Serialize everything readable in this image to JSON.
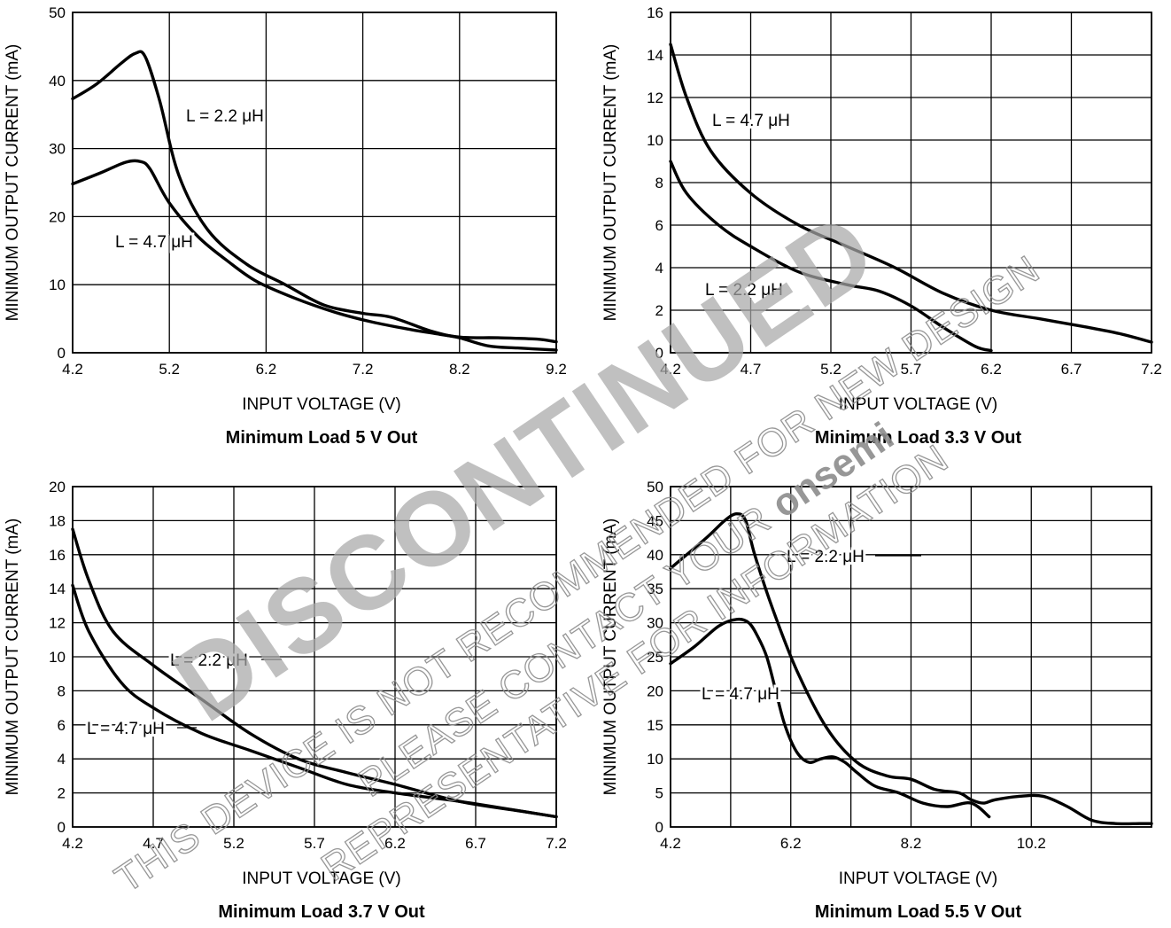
{
  "watermark": {
    "big": "DISCONTINUED",
    "line1": "THIS DEVICE IS NOT RECOMMENDED FOR NEW DESIGN",
    "line2_a": "PLEASE CONTACT YOUR ",
    "line2_brand": "onsemi",
    "line3": "REPRESENTATIVE FOR INFORMATION",
    "color": "#a8a8a8"
  },
  "chart_data": [
    {
      "type": "line",
      "title": "Minimum Load 5 V Out",
      "xlabel": "INPUT VOLTAGE (V)",
      "ylabel": "MINIMUM OUTPUT CURRENT (mA)",
      "xlim": [
        4.2,
        9.2
      ],
      "ylim": [
        0,
        50
      ],
      "xticks": [
        "4.2",
        "5.2",
        "6.2",
        "7.2",
        "8.2",
        "9.2"
      ],
      "xtick_values": [
        4.2,
        5.2,
        6.2,
        7.2,
        8.2,
        9.2
      ],
      "yticks": [
        "0",
        "10",
        "20",
        "30",
        "40",
        "50"
      ],
      "ytick_values": [
        0,
        10,
        20,
        30,
        40,
        50
      ],
      "grid": true,
      "series": [
        {
          "name": "L = 2.2 μH",
          "x": [
            4.2,
            4.45,
            4.7,
            4.85,
            4.95,
            5.1,
            5.3,
            5.6,
            6.0,
            6.4,
            6.8,
            7.2,
            7.5,
            7.9,
            8.2,
            8.6,
            9.0,
            9.2
          ],
          "y": [
            37.3,
            39.5,
            42.5,
            44.0,
            43.5,
            37.0,
            26.0,
            18.0,
            13.0,
            10.0,
            7.0,
            5.8,
            5.2,
            3.2,
            2.3,
            2.2,
            2.0,
            1.6
          ]
        },
        {
          "name": "L = 4.7 μH",
          "x": [
            4.2,
            4.5,
            4.75,
            4.9,
            5.0,
            5.2,
            5.5,
            5.8,
            6.1,
            6.5,
            6.9,
            7.3,
            7.7,
            8.0,
            8.2,
            8.5,
            8.8,
            9.2
          ],
          "y": [
            24.8,
            26.5,
            28.0,
            28.1,
            27.0,
            22.0,
            17.0,
            13.5,
            10.5,
            8.0,
            6.0,
            4.5,
            3.4,
            2.7,
            2.2,
            1.0,
            0.7,
            0.4
          ]
        }
      ],
      "annotations": [
        {
          "text": "L = 2.2 μH",
          "series": 0
        },
        {
          "text": "L = 4.7 μH",
          "series": 1
        }
      ]
    },
    {
      "type": "line",
      "title": "Minimum Load 3.3 V Out",
      "xlabel": "INPUT VOLTAGE (V)",
      "ylabel": "MINIMUM OUTPUT CURRENT (mA)",
      "xlim": [
        4.2,
        7.2
      ],
      "ylim": [
        0,
        16
      ],
      "xticks": [
        "4.2",
        "4.7",
        "5.2",
        "5.7",
        "6.2",
        "6.7",
        "7.2"
      ],
      "xtick_values": [
        4.2,
        4.7,
        5.2,
        5.7,
        6.2,
        6.7,
        7.2
      ],
      "yticks": [
        "0",
        "2",
        "4",
        "6",
        "8",
        "10",
        "12",
        "14",
        "16"
      ],
      "ytick_values": [
        0,
        2,
        4,
        6,
        8,
        10,
        12,
        14,
        16
      ],
      "grid": true,
      "series": [
        {
          "name": "L = 4.7 μH",
          "x": [
            4.2,
            4.3,
            4.45,
            4.7,
            5.0,
            5.3,
            5.6,
            5.9,
            6.2,
            6.5,
            6.8,
            7.0,
            7.2
          ],
          "y": [
            14.5,
            12.0,
            9.5,
            7.5,
            6.0,
            5.0,
            4.0,
            2.8,
            2.0,
            1.6,
            1.2,
            0.9,
            0.5
          ]
        },
        {
          "name": "L = 2.2 μH",
          "x": [
            4.2,
            4.3,
            4.5,
            4.7,
            5.0,
            5.3,
            5.5,
            5.7,
            5.9,
            6.1,
            6.2
          ],
          "y": [
            9.0,
            7.5,
            6.0,
            5.0,
            3.8,
            3.2,
            2.9,
            2.2,
            1.2,
            0.3,
            0.1
          ]
        }
      ],
      "annotations": [
        {
          "text": "L = 4.7 μH",
          "series": 0
        },
        {
          "text": "L = 2.2 μH",
          "series": 1
        }
      ]
    },
    {
      "type": "line",
      "title": "Minimum Load 3.7 V Out",
      "xlabel": "INPUT VOLTAGE (V)",
      "ylabel": "MINIMUM OUTPUT CURRENT (mA)",
      "xlim": [
        4.2,
        7.2
      ],
      "ylim": [
        0,
        20
      ],
      "xticks": [
        "4.2",
        "4.7",
        "5.2",
        "5.7",
        "6.2",
        "6.7",
        "7.2"
      ],
      "xtick_values": [
        4.2,
        4.7,
        5.2,
        5.7,
        6.2,
        6.7,
        7.2
      ],
      "yticks": [
        "0",
        "2",
        "4",
        "6",
        "8",
        "10",
        "12",
        "14",
        "16",
        "18",
        "20"
      ],
      "ytick_values": [
        0,
        2,
        4,
        6,
        8,
        10,
        12,
        14,
        16,
        18,
        20
      ],
      "grid": true,
      "series": [
        {
          "name": "L = 2.2 μH",
          "x": [
            4.2,
            4.3,
            4.45,
            4.7,
            5.0,
            5.3,
            5.6,
            5.9,
            6.2,
            6.6,
            7.0,
            7.2
          ],
          "y": [
            17.5,
            14.5,
            11.5,
            9.5,
            7.5,
            5.5,
            4.0,
            3.2,
            2.5,
            1.5,
            0.9,
            0.6
          ]
        },
        {
          "name": "L = 4.7 μH",
          "x": [
            4.2,
            4.3,
            4.5,
            4.7,
            5.0,
            5.3,
            5.6,
            5.9,
            6.2,
            6.6,
            7.0,
            7.2
          ],
          "y": [
            14.2,
            11.5,
            8.5,
            7.0,
            5.5,
            4.5,
            3.5,
            2.5,
            2.0,
            1.5,
            0.9,
            0.6
          ]
        }
      ],
      "annotations": [
        {
          "text": "L = 2.2 μH",
          "series": 0
        },
        {
          "text": "L = 4.7 μH",
          "series": 1
        }
      ]
    },
    {
      "type": "line",
      "title": "Minimum Load 5.5 V Out",
      "xlabel": "INPUT VOLTAGE (V)",
      "ylabel": "MINIMUM OUTPUT CURRENT (mA)",
      "xlim": [
        4.2,
        12.2
      ],
      "ylim": [
        0,
        50
      ],
      "xticks": [
        "4.2",
        "6.2",
        "8.2",
        "10.2"
      ],
      "xtick_values": [
        4.2,
        6.2,
        8.2,
        10.2
      ],
      "xgrid_values": [
        4.2,
        5.2,
        6.2,
        7.2,
        8.2,
        9.2,
        10.2,
        11.2,
        12.2
      ],
      "yticks": [
        "0",
        "5",
        "10",
        "15",
        "20",
        "25",
        "30",
        "35",
        "40",
        "45",
        "50"
      ],
      "ytick_values": [
        0,
        5,
        10,
        15,
        20,
        25,
        30,
        35,
        40,
        45,
        50
      ],
      "grid": true,
      "series": [
        {
          "name": "L = 2.2 μH",
          "x": [
            4.2,
            4.8,
            5.1,
            5.3,
            5.45,
            5.6,
            5.9,
            6.3,
            6.8,
            7.3,
            7.8,
            8.2,
            8.6,
            9.0,
            9.2,
            9.4,
            9.6,
            10.0,
            10.4,
            10.8,
            11.2,
            11.6,
            12.0,
            12.2
          ],
          "y": [
            38.0,
            42.5,
            45.0,
            46.0,
            45.0,
            40.0,
            32.0,
            23.0,
            14.5,
            9.5,
            7.5,
            7.0,
            5.5,
            5.0,
            4.0,
            3.5,
            4.0,
            4.5,
            4.5,
            3.0,
            1.0,
            0.5,
            0.5,
            0.5
          ]
        },
        {
          "name": "L = 4.7 μH",
          "x": [
            4.2,
            4.6,
            5.0,
            5.3,
            5.5,
            5.65,
            5.8,
            5.95,
            6.1,
            6.3,
            6.5,
            6.7,
            6.9,
            7.1,
            7.3,
            7.6,
            8.0,
            8.4,
            8.8,
            9.2,
            9.5
          ],
          "y": [
            24.0,
            26.5,
            29.5,
            30.5,
            30.0,
            28.0,
            25.0,
            20.0,
            15.0,
            11.0,
            9.5,
            10.0,
            10.3,
            9.5,
            8.0,
            6.0,
            5.0,
            3.5,
            3.0,
            3.5,
            1.5
          ]
        }
      ],
      "annotations": [
        {
          "text": "L = 2.2 μH",
          "series": 0
        },
        {
          "text": "L = 4.7 μH",
          "series": 1
        }
      ]
    }
  ]
}
